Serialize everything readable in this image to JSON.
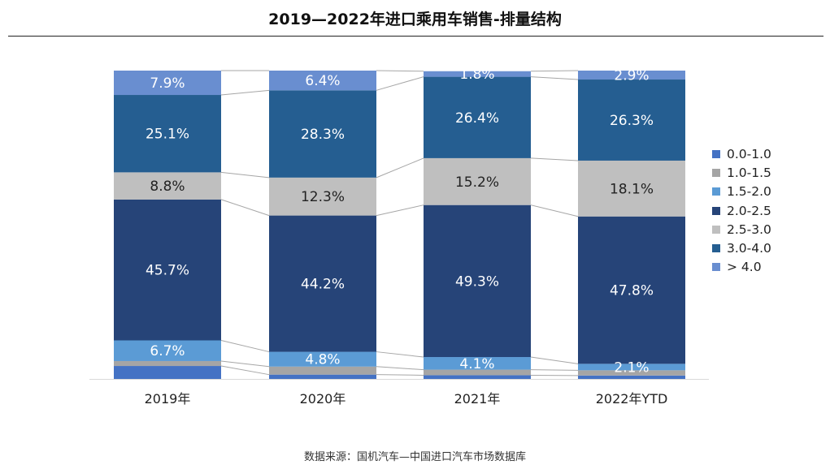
{
  "title": "2019—2022年进口乘用车销售-排量结构",
  "source": "数据来源：国机汽车—中国进口汽车市场数据库",
  "chart_data": {
    "type": "bar",
    "stacked": true,
    "normalized_percent": true,
    "title": "2019—2022年进口乘用车销售-排量结构",
    "xlabel": "",
    "ylabel": "",
    "ylim": [
      0,
      100
    ],
    "grid": false,
    "legend_position": "right",
    "categories": [
      "2019年",
      "2020年",
      "2021年",
      "2022年YTD"
    ],
    "series": [
      {
        "name": "0.0-1.0",
        "color": "#4472c4",
        "values": [
          4.2,
          1.4,
          1.2,
          1.1
        ],
        "labels": [
          "",
          "",
          "",
          ""
        ]
      },
      {
        "name": "1.0-1.5",
        "color": "#a5a5a5",
        "values": [
          1.6,
          2.6,
          1.8,
          1.7
        ],
        "labels": [
          "",
          "",
          "",
          ""
        ]
      },
      {
        "name": "1.5-2.0",
        "color": "#5b9bd5",
        "values": [
          6.7,
          4.8,
          4.1,
          2.1
        ],
        "labels": [
          "6.7%",
          "4.8%",
          "4.1%",
          "2.1%"
        ]
      },
      {
        "name": "2.0-2.5",
        "color": "#264478",
        "values": [
          45.7,
          44.2,
          49.3,
          47.8
        ],
        "labels": [
          "45.7%",
          "44.2%",
          "49.3%",
          "47.8%"
        ]
      },
      {
        "name": "2.5-3.0",
        "color": "#bfbfbf",
        "values": [
          8.8,
          12.3,
          15.2,
          18.1
        ],
        "labels": [
          "8.8%",
          "12.3%",
          "15.2%",
          "18.1%"
        ]
      },
      {
        "name": "3.0-4.0",
        "color": "#255e91",
        "values": [
          25.1,
          28.3,
          26.4,
          26.3
        ],
        "labels": [
          "25.1%",
          "28.3%",
          "26.4%",
          "26.3%"
        ]
      },
      {
        "name": "> 4.0",
        "color": "#698ed0",
        "values": [
          7.9,
          6.4,
          1.8,
          2.9
        ],
        "labels": [
          "7.9%",
          "6.4%",
          "1.8%",
          "2.9%"
        ]
      }
    ],
    "label_colors": {
      "1.5-2.0": "#ffffff",
      "2.0-2.5": "#ffffff",
      "2.5-3.0": "#222222",
      "3.0-4.0": "#ffffff",
      "> 4.0": "#ffffff"
    }
  }
}
